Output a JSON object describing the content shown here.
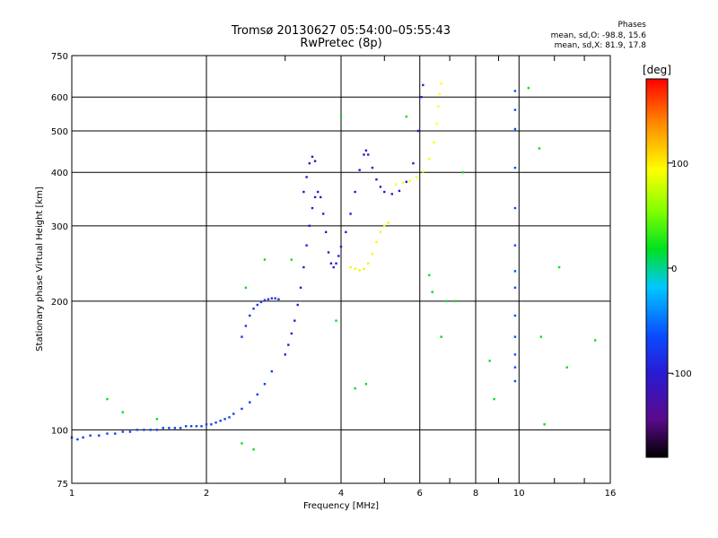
{
  "title": {
    "line1": "Tromsø 20130627 05:54:00–05:55:43",
    "line2": "RwPretec (8p)"
  },
  "stats": {
    "heading": "Phases",
    "line_o": "mean, sd,O: -98.8, 15.6",
    "line_x": "mean, sd,X: 81.9, 17.8"
  },
  "colorbar": {
    "unit_label": "[deg]",
    "range": [
      -180,
      180
    ],
    "ticks": [
      {
        "value": 100,
        "label": "100"
      },
      {
        "value": 0,
        "label": "0"
      },
      {
        "value": -100,
        "label": "-100"
      }
    ]
  },
  "chart_data": {
    "type": "scatter",
    "xlabel": "Frequency [MHz]",
    "ylabel": "Stationary phase Virtual Height [km]",
    "x_scale": "log",
    "y_scale": "log",
    "xlim": [
      1,
      16
    ],
    "ylim": [
      75,
      750
    ],
    "x_ticks": [
      {
        "value": 1,
        "label": "1"
      },
      {
        "value": 2,
        "label": "2"
      },
      {
        "value": 4,
        "label": "4"
      },
      {
        "value": 6,
        "label": "6"
      },
      {
        "value": 8,
        "label": "8"
      },
      {
        "value": 10,
        "label": "10"
      },
      {
        "value": 16,
        "label": "16"
      }
    ],
    "x_grid": [
      2,
      4,
      6,
      8,
      10
    ],
    "x_minor": [
      3,
      5,
      7,
      9,
      12,
      14
    ],
    "y_ticks": [
      {
        "value": 75,
        "label": "75"
      },
      {
        "value": 100,
        "label": "100"
      },
      {
        "value": 200,
        "label": "200"
      },
      {
        "value": 300,
        "label": "300"
      },
      {
        "value": 400,
        "label": "400"
      },
      {
        "value": 500,
        "label": "500"
      },
      {
        "value": 600,
        "label": "600"
      },
      {
        "value": 750,
        "label": "750"
      }
    ],
    "y_grid": [
      100,
      200,
      300,
      400,
      500,
      600
    ],
    "grid": true,
    "color_by": "phase [deg]",
    "series": [
      {
        "role": "o-mode low-height trace",
        "phase_deg": -105,
        "points": [
          [
            1.0,
            96
          ],
          [
            1.03,
            95
          ],
          [
            1.06,
            96
          ],
          [
            1.1,
            97
          ],
          [
            1.15,
            97
          ],
          [
            1.2,
            98
          ],
          [
            1.25,
            98
          ],
          [
            1.3,
            99
          ],
          [
            1.35,
            99
          ],
          [
            1.4,
            100
          ],
          [
            1.45,
            100
          ],
          [
            1.5,
            100
          ],
          [
            1.55,
            100
          ],
          [
            1.6,
            101
          ],
          [
            1.65,
            101
          ],
          [
            1.7,
            101
          ],
          [
            1.75,
            101
          ],
          [
            1.8,
            102
          ],
          [
            1.85,
            102
          ],
          [
            1.9,
            102
          ],
          [
            1.95,
            102
          ],
          [
            2.0,
            103
          ],
          [
            2.05,
            103
          ],
          [
            2.1,
            104
          ],
          [
            2.15,
            105
          ],
          [
            2.2,
            106
          ],
          [
            2.25,
            107
          ],
          [
            2.3,
            109
          ],
          [
            2.4,
            112
          ],
          [
            2.5,
            116
          ],
          [
            2.6,
            121
          ],
          [
            2.7,
            128
          ],
          [
            2.8,
            137
          ]
        ]
      },
      {
        "role": "o-mode E/F1 cusp",
        "phase_deg": -110,
        "points": [
          [
            2.4,
            165
          ],
          [
            2.45,
            175
          ],
          [
            2.5,
            185
          ],
          [
            2.55,
            192
          ],
          [
            2.6,
            196
          ],
          [
            2.65,
            199
          ],
          [
            2.7,
            201
          ],
          [
            2.75,
            202
          ],
          [
            2.8,
            203
          ],
          [
            2.85,
            203
          ],
          [
            2.9,
            202
          ]
        ]
      },
      {
        "role": "o-mode F1 spread trace",
        "phase_deg": -120,
        "points": [
          [
            3.0,
            150
          ],
          [
            3.05,
            158
          ],
          [
            3.1,
            168
          ],
          [
            3.15,
            180
          ],
          [
            3.2,
            196
          ],
          [
            3.25,
            215
          ],
          [
            3.3,
            240
          ],
          [
            3.35,
            270
          ],
          [
            3.4,
            300
          ],
          [
            3.45,
            330
          ],
          [
            3.5,
            350
          ],
          [
            3.55,
            360
          ],
          [
            3.6,
            350
          ],
          [
            3.65,
            320
          ],
          [
            3.7,
            290
          ],
          [
            3.75,
            260
          ],
          [
            3.8,
            245
          ],
          [
            3.85,
            240
          ],
          [
            3.9,
            245
          ],
          [
            3.95,
            255
          ],
          [
            4.0,
            268
          ],
          [
            4.1,
            290
          ],
          [
            4.2,
            320
          ],
          [
            4.3,
            360
          ],
          [
            4.4,
            405
          ],
          [
            4.5,
            440
          ],
          [
            4.55,
            450
          ],
          [
            4.6,
            440
          ],
          [
            4.7,
            410
          ],
          [
            4.8,
            385
          ],
          [
            4.9,
            370
          ],
          [
            5.0,
            360
          ],
          [
            5.2,
            356
          ],
          [
            5.4,
            362
          ],
          [
            5.6,
            380
          ],
          [
            5.8,
            420
          ],
          [
            5.95,
            500
          ],
          [
            6.05,
            600
          ],
          [
            6.1,
            640
          ]
        ]
      },
      {
        "role": "o-mode secondary cusp",
        "phase_deg": -125,
        "points": [
          [
            3.3,
            360
          ],
          [
            3.35,
            390
          ],
          [
            3.4,
            420
          ],
          [
            3.45,
            435
          ],
          [
            3.5,
            425
          ]
        ]
      },
      {
        "role": "x-mode low trace",
        "phase_deg": 95,
        "points": [
          [
            4.2,
            240
          ],
          [
            4.3,
            238
          ],
          [
            4.4,
            236
          ],
          [
            4.5,
            238
          ],
          [
            4.6,
            245
          ],
          [
            4.7,
            258
          ],
          [
            4.8,
            275
          ],
          [
            4.9,
            290
          ],
          [
            5.0,
            300
          ],
          [
            5.1,
            305
          ]
        ]
      },
      {
        "role": "x-mode high trace",
        "phase_deg": 90,
        "points": [
          [
            5.3,
            375
          ],
          [
            5.5,
            378
          ],
          [
            5.7,
            382
          ],
          [
            5.9,
            390
          ],
          [
            6.1,
            402
          ],
          [
            6.3,
            430
          ],
          [
            6.45,
            470
          ],
          [
            6.55,
            520
          ],
          [
            6.6,
            570
          ],
          [
            6.65,
            610
          ],
          [
            6.7,
            645
          ]
        ]
      },
      {
        "role": "vertical column near 10 MHz",
        "phase_deg": -100,
        "points": [
          [
            9.8,
            620
          ],
          [
            9.8,
            560
          ],
          [
            9.8,
            505
          ],
          [
            9.8,
            410
          ],
          [
            9.8,
            330
          ],
          [
            9.8,
            270
          ],
          [
            9.8,
            235
          ],
          [
            9.8,
            215
          ],
          [
            9.8,
            185
          ],
          [
            9.8,
            165
          ],
          [
            9.8,
            150
          ],
          [
            9.8,
            140
          ],
          [
            9.8,
            130
          ]
        ]
      },
      {
        "role": "scattered points",
        "phase_deg": 0,
        "points": [
          [
            1.2,
            118
          ],
          [
            1.3,
            110
          ],
          [
            1.55,
            106
          ],
          [
            2.4,
            93
          ],
          [
            2.55,
            90
          ],
          [
            2.45,
            215
          ],
          [
            2.7,
            250
          ],
          [
            3.1,
            250
          ],
          [
            3.9,
            180
          ],
          [
            4.0,
            540
          ],
          [
            4.3,
            125
          ],
          [
            4.55,
            128
          ],
          [
            5.6,
            540
          ],
          [
            6.3,
            230
          ],
          [
            6.4,
            210
          ],
          [
            6.9,
            200
          ],
          [
            7.2,
            200
          ],
          [
            7.5,
            400
          ],
          [
            6.7,
            165
          ],
          [
            8.6,
            145
          ],
          [
            8.8,
            118
          ],
          [
            10.5,
            630
          ],
          [
            11.1,
            455
          ],
          [
            11.2,
            165
          ],
          [
            11.4,
            103
          ],
          [
            12.3,
            240
          ],
          [
            12.8,
            140
          ],
          [
            14.8,
            162
          ]
        ]
      }
    ]
  }
}
